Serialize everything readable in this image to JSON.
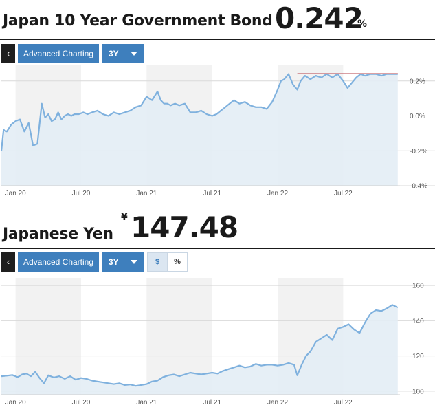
{
  "bond": {
    "title": "Japan 10 Year Government Bond",
    "value": "0.242",
    "unit": "%",
    "toolbar": {
      "back_label": "‹",
      "charting_label": "Advanced Charting",
      "period_label": "3Y"
    }
  },
  "yen": {
    "title": "Japanese Yen",
    "currency_symbol": "¥",
    "value": "147.48",
    "toolbar": {
      "back_label": "‹",
      "charting_label": "Advanced Charting",
      "period_label": "3Y",
      "mode_dollar": "$",
      "mode_percent": "%"
    }
  },
  "colors": {
    "line": "#7fb1de",
    "area": "#e3edf5",
    "shade": "#f2f2f2",
    "button": "#3e7fbd",
    "marker_green": "#2e9e4a",
    "marker_red": "#b5404a"
  },
  "chart_data": [
    {
      "type": "area",
      "title": "Japan 10 Year Government Bond",
      "x_tick_labels": [
        "Jan 20",
        "Jul 20",
        "Jan 21",
        "Jul 21",
        "Jan 22",
        "Jul 22"
      ],
      "y_tick_labels": [
        "0.2%",
        "0.0%",
        "-0.2%",
        "-0.4%"
      ],
      "y_ticks": [
        0.2,
        0.0,
        -0.2,
        -0.4
      ],
      "ylim": [
        -0.4,
        0.27
      ],
      "x_range_months": [
        -1.3,
        35.2
      ],
      "grid": true,
      "markers": {
        "vertical_line_month": 25.8,
        "horizontal_line_value": 0.242
      },
      "x_months": [
        -1.3,
        -1.1,
        -0.8,
        -0.4,
        0,
        0.4,
        0.8,
        1.2,
        1.6,
        2.0,
        2.4,
        2.7,
        3.0,
        3.3,
        3.6,
        3.9,
        4.2,
        4.5,
        4.8,
        5.1,
        5.4,
        5.8,
        6.2,
        6.6,
        7.0,
        7.5,
        8.0,
        8.5,
        9.0,
        9.5,
        10.0,
        10.5,
        11.0,
        11.5,
        12.0,
        12.5,
        13.0,
        13.3,
        13.6,
        13.9,
        14.2,
        14.6,
        15.0,
        15.5,
        16.0,
        16.5,
        17.0,
        17.5,
        18.0,
        18.4,
        18.8,
        19.2,
        19.6,
        20.0,
        20.5,
        21.0,
        21.5,
        22.0,
        22.5,
        23.0,
        23.5,
        24.0,
        24.3,
        24.6,
        25.0,
        25.4,
        25.8,
        26.1,
        26.5,
        27.0,
        27.5,
        28.0,
        28.5,
        29.0,
        29.5,
        30.0,
        30.4,
        30.8,
        31.2,
        31.6,
        32.0,
        32.5,
        33.0,
        33.5,
        34.0,
        34.5,
        35.0
      ],
      "values": [
        -0.2,
        -0.08,
        -0.09,
        -0.05,
        -0.03,
        -0.02,
        -0.09,
        -0.04,
        -0.17,
        -0.16,
        0.07,
        -0.01,
        0.01,
        -0.03,
        -0.02,
        0.02,
        -0.02,
        0.0,
        0.01,
        0.0,
        0.01,
        0.01,
        0.02,
        0.01,
        0.02,
        0.03,
        0.01,
        0.0,
        0.02,
        0.01,
        0.02,
        0.03,
        0.05,
        0.06,
        0.11,
        0.09,
        0.14,
        0.09,
        0.07,
        0.07,
        0.06,
        0.07,
        0.06,
        0.07,
        0.02,
        0.02,
        0.03,
        0.01,
        0.0,
        0.01,
        0.03,
        0.05,
        0.07,
        0.09,
        0.07,
        0.08,
        0.06,
        0.05,
        0.05,
        0.04,
        0.08,
        0.15,
        0.2,
        0.21,
        0.24,
        0.18,
        0.15,
        0.2,
        0.23,
        0.21,
        0.23,
        0.22,
        0.24,
        0.22,
        0.24,
        0.2,
        0.16,
        0.19,
        0.22,
        0.24,
        0.23,
        0.24,
        0.24,
        0.23,
        0.24,
        0.24,
        0.24
      ]
    },
    {
      "type": "area",
      "title": "Japanese Yen",
      "x_tick_labels": [
        "Jan 20",
        "Jul 20",
        "Jan 21",
        "Jul 21",
        "Jan 22",
        "Jul 22"
      ],
      "y_tick_labels": [
        "160",
        "140",
        "120",
        "100"
      ],
      "y_ticks": [
        160,
        140,
        120,
        100
      ],
      "ylim": [
        98,
        162
      ],
      "x_range_months": [
        -1.3,
        35.2
      ],
      "grid": true,
      "markers": {
        "vertical_line_month": 25.8
      },
      "x_months": [
        -1.3,
        -0.8,
        -0.3,
        0.2,
        0.6,
        1.0,
        1.4,
        1.8,
        2.2,
        2.6,
        3.0,
        3.5,
        4.0,
        4.5,
        5.0,
        5.5,
        6.0,
        6.5,
        7.0,
        7.5,
        8.0,
        8.5,
        9.0,
        9.5,
        10.0,
        10.5,
        11.0,
        11.5,
        12.0,
        12.5,
        13.0,
        13.5,
        14.0,
        14.5,
        15.0,
        15.5,
        16.0,
        16.5,
        17.0,
        17.5,
        18.0,
        18.5,
        19.0,
        19.5,
        20.0,
        20.5,
        21.0,
        21.5,
        22.0,
        22.5,
        23.0,
        23.5,
        24.0,
        24.5,
        25.0,
        25.5,
        25.8,
        26.2,
        26.6,
        27.0,
        27.5,
        28.0,
        28.5,
        29.0,
        29.5,
        30.0,
        30.5,
        31.0,
        31.5,
        32.0,
        32.5,
        33.0,
        33.5,
        34.0,
        34.5,
        35.0
      ],
      "values": [
        108.5,
        108.8,
        109.2,
        108.0,
        109.5,
        110.0,
        108.5,
        111.0,
        107.5,
        104.5,
        109.0,
        107.8,
        108.5,
        107.0,
        108.5,
        106.5,
        107.5,
        107.0,
        106.0,
        105.5,
        105.0,
        104.5,
        104.0,
        104.5,
        103.5,
        103.8,
        103.0,
        103.5,
        104.0,
        105.5,
        106.0,
        108.0,
        109.0,
        109.5,
        108.5,
        109.5,
        110.5,
        110.0,
        109.5,
        110.0,
        110.5,
        110.0,
        111.5,
        112.5,
        113.5,
        114.5,
        113.5,
        114.0,
        115.5,
        114.5,
        115.0,
        115.0,
        114.5,
        115.0,
        116.0,
        115.0,
        109.0,
        115.0,
        120.0,
        122.5,
        128.0,
        130.0,
        132.0,
        129.0,
        135.5,
        136.5,
        138.0,
        135.0,
        133.0,
        139.0,
        144.0,
        146.0,
        145.5,
        147.0,
        149.0,
        147.5
      ]
    }
  ]
}
